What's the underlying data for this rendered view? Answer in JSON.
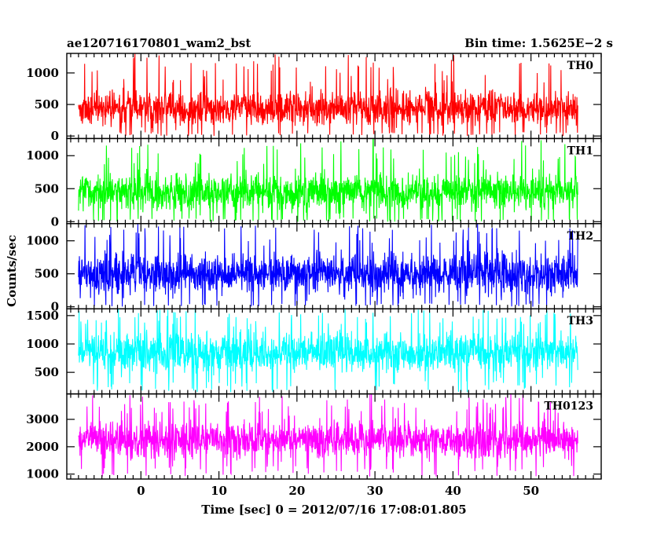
{
  "chart_data": {
    "type": "line",
    "title": "ae120716170801_wam2_bst",
    "subtitle": "Bin time: 1.5625E−2 s",
    "xlabel": "Time [sec] 0 = 2012/07/16 17:08:01.805",
    "ylabel": "Counts/sec",
    "xlim": [
      -9.5,
      59
    ],
    "x_data_range": [
      -8,
      56
    ],
    "x_ticks": [
      0,
      10,
      20,
      30,
      40,
      50
    ],
    "x_tick_labels": [
      "0",
      "10",
      "20",
      "30",
      "40",
      "50"
    ],
    "grid": false,
    "panels": [
      {
        "name": "TH0",
        "color": "#ff0000",
        "ylim": [
          -40,
          1310
        ],
        "y_ticks": [
          0,
          500,
          1000
        ],
        "y_tick_labels": [
          "0",
          "500",
          "1000"
        ],
        "typical_low": 60,
        "typical_high": 850,
        "min": 0,
        "max": 1310,
        "mean": 470
      },
      {
        "name": "TH1",
        "color": "#00ff00",
        "ylim": [
          -30,
          1260
        ],
        "y_ticks": [
          0,
          500,
          1000
        ],
        "y_tick_labels": [
          "0",
          "500",
          "1000"
        ],
        "typical_low": 50,
        "typical_high": 850,
        "min": 0,
        "max": 1260,
        "mean": 460
      },
      {
        "name": "TH2",
        "color": "#0000ff",
        "ylim": [
          -30,
          1260
        ],
        "y_ticks": [
          0,
          500,
          1000
        ],
        "y_tick_labels": [
          "0",
          "500",
          "1000"
        ],
        "typical_low": 50,
        "typical_high": 950,
        "min": 0,
        "max": 1260,
        "mean": 510
      },
      {
        "name": "TH3",
        "color": "#00ffff",
        "ylim": [
          120,
          1620
        ],
        "y_ticks": [
          500,
          1000,
          1500
        ],
        "y_tick_labels": [
          "500",
          "1000",
          "1500"
        ],
        "typical_low": 350,
        "typical_high": 1350,
        "min": 150,
        "max": 1620,
        "mean": 850
      },
      {
        "name": "TH0123",
        "color": "#ff00ff",
        "ylim": [
          820,
          3930
        ],
        "y_ticks": [
          1000,
          2000,
          3000
        ],
        "y_tick_labels": [
          "1000",
          "2000",
          "3000"
        ],
        "typical_low": 1300,
        "typical_high": 3200,
        "min": 900,
        "max": 3930,
        "mean": 2300
      }
    ]
  }
}
